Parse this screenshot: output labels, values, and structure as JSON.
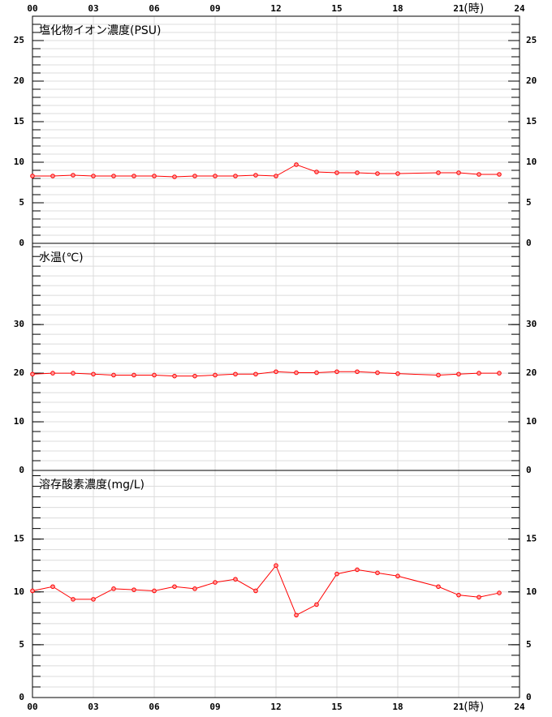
{
  "x_axis": {
    "xlim": [
      0,
      24
    ],
    "unit_label": "(時)",
    "xticks": [
      {
        "value": 0,
        "label": "00"
      },
      {
        "value": 3,
        "label": "03"
      },
      {
        "value": 6,
        "label": "06"
      },
      {
        "value": 9,
        "label": "09"
      },
      12,
      15,
      18,
      21,
      24
    ]
  },
  "chart_data": [
    {
      "type": "line",
      "title": "塩化物イオン濃度(PSU)",
      "color": "#ff0000",
      "x": [
        0,
        1,
        2,
        3,
        4,
        5,
        6,
        7,
        8,
        9,
        10,
        11,
        12,
        13,
        14,
        15,
        16,
        17,
        18,
        20,
        21,
        22,
        23
      ],
      "values": [
        8.3,
        8.3,
        8.4,
        8.3,
        8.3,
        8.3,
        8.3,
        8.2,
        8.3,
        8.3,
        8.3,
        8.4,
        8.3,
        9.7,
        8.8,
        8.7,
        8.7,
        8.6,
        8.6,
        8.7,
        8.7,
        8.5,
        8.5
      ],
      "ylim": [
        0,
        28
      ],
      "yticks": [
        0,
        5,
        10,
        15,
        20,
        25
      ],
      "minor_step": 1,
      "grid": true
    },
    {
      "type": "line",
      "title": "水温(℃)",
      "color": "#ff0000",
      "x": [
        0,
        1,
        2,
        3,
        4,
        5,
        6,
        7,
        8,
        9,
        10,
        11,
        12,
        13,
        14,
        15,
        16,
        17,
        18,
        20,
        21,
        22,
        23
      ],
      "values": [
        19.8,
        20.0,
        20.0,
        19.8,
        19.6,
        19.6,
        19.6,
        19.4,
        19.4,
        19.6,
        19.8,
        19.8,
        20.3,
        20.1,
        20.1,
        20.3,
        20.3,
        20.1,
        19.9,
        19.6,
        19.8,
        20.0,
        20.0
      ],
      "ylim": [
        0,
        46.7
      ],
      "yticks": [
        0,
        10,
        20,
        30
      ],
      "minor_step": 2,
      "grid": true
    },
    {
      "type": "line",
      "title": "溶存酸素濃度(mg/L)",
      "color": "#ff0000",
      "x": [
        0,
        1,
        2,
        3,
        4,
        5,
        6,
        7,
        8,
        9,
        10,
        11,
        12,
        13,
        14,
        15,
        16,
        17,
        18,
        20,
        21,
        22,
        23
      ],
      "values": [
        10.1,
        10.5,
        9.3,
        9.3,
        10.3,
        10.2,
        10.1,
        10.5,
        10.3,
        10.9,
        11.2,
        10.1,
        12.5,
        7.8,
        8.8,
        11.7,
        12.1,
        11.8,
        11.5,
        10.5,
        9.7,
        9.5,
        9.9
      ],
      "ylim": [
        0,
        21.5
      ],
      "yticks": [
        0,
        5,
        10,
        15
      ],
      "minor_step": 1,
      "grid": true
    }
  ]
}
